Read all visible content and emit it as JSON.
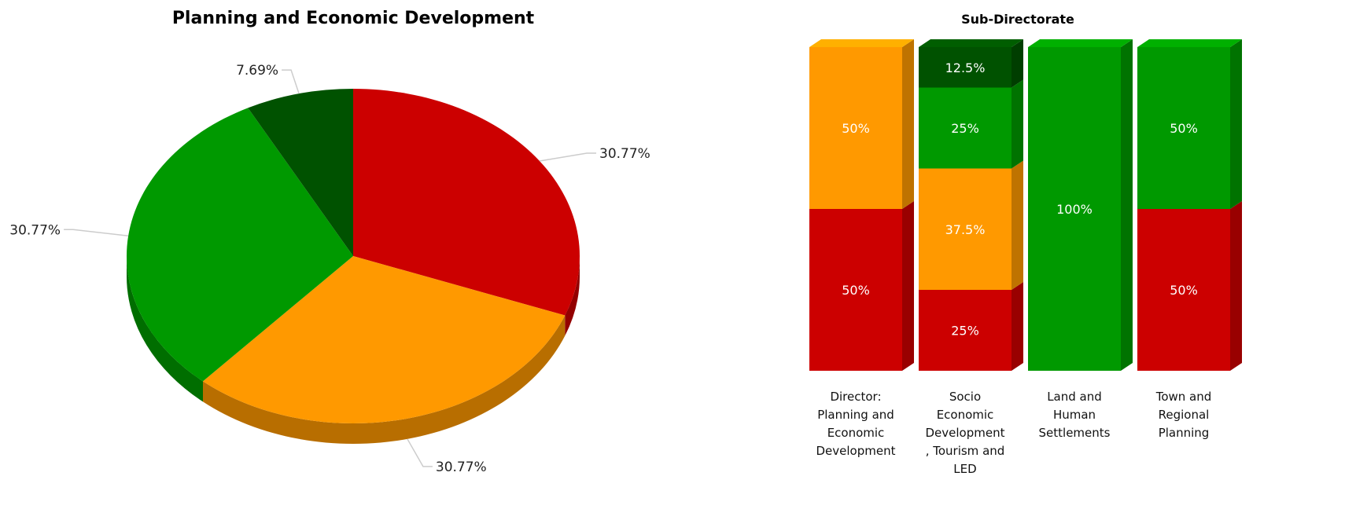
{
  "chart_data": [
    {
      "type": "pie",
      "title": "Planning and Economic Development",
      "slices": [
        {
          "value": 30.77,
          "label": "30.77%",
          "color": "#cc0000"
        },
        {
          "value": 30.77,
          "label": "30.77%",
          "color": "#ff9900"
        },
        {
          "value": 30.77,
          "label": "30.77%",
          "color": "#009900"
        },
        {
          "value": 7.69,
          "label": "7.69%",
          "color": "#005200"
        }
      ]
    },
    {
      "type": "bar",
      "stacked": true,
      "title": "Sub-Directorate",
      "categories": [
        [
          "Director:",
          "Planning and",
          "Economic",
          "Development"
        ],
        [
          "Socio",
          "Economic",
          "Development",
          ", Tourism and",
          "LED"
        ],
        [
          "Land and",
          "Human",
          "Settlements"
        ],
        [
          "Town and",
          "Regional",
          "Planning"
        ]
      ],
      "series": [
        {
          "color": "#cc0000",
          "values": [
            50,
            25,
            0,
            50
          ],
          "labels": [
            "50%",
            "25%",
            "",
            "50%"
          ]
        },
        {
          "color": "#ff9900",
          "values": [
            50,
            37.5,
            0,
            0
          ],
          "labels": [
            "50%",
            "37.5%",
            "",
            ""
          ]
        },
        {
          "color": "#009900",
          "values": [
            0,
            25,
            100,
            50
          ],
          "labels": [
            "",
            "25%",
            "100%",
            "50%"
          ]
        },
        {
          "color": "#005200",
          "values": [
            0,
            12.5,
            0,
            0
          ],
          "labels": [
            "",
            "12.5%",
            "",
            ""
          ]
        }
      ],
      "ylim": [
        0,
        100
      ]
    }
  ]
}
